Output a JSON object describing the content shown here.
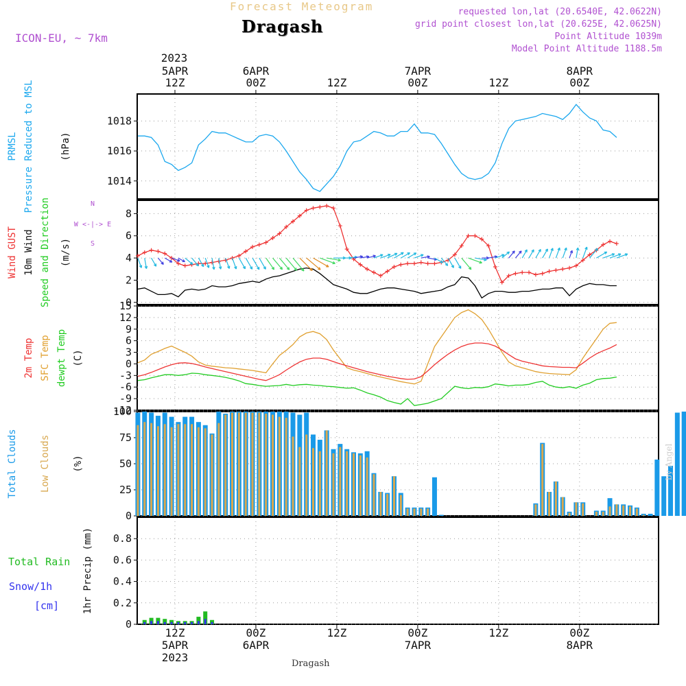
{
  "header": {
    "chart_title": "Forecast Meteogram",
    "location": "Dragash",
    "model": "ICON-EU, ~ 7km",
    "requested": "requested lon,lat (20.6540E, 42.0622N)",
    "grid_point": "grid point closest lon,lat (20.625E, 42.0625N)",
    "point_altitude": "Point Altitude 1039m",
    "model_altitude": "Model Point Altitude 1188.5m"
  },
  "time_axis": {
    "top_year": "2023",
    "ticks": [
      {
        "hour": 0,
        "top": [
          "5APR",
          "12Z"
        ],
        "bottom": [
          "12Z",
          "5APR",
          "2023"
        ]
      },
      {
        "hour": 12,
        "top": [
          "6APR",
          "00Z"
        ],
        "bottom": [
          "00Z",
          "6APR"
        ]
      },
      {
        "hour": 24,
        "top": [
          "12Z"
        ],
        "bottom": [
          "12Z"
        ]
      },
      {
        "hour": 36,
        "top": [
          "7APR",
          "00Z"
        ],
        "bottom": [
          "00Z",
          "7APR"
        ]
      },
      {
        "hour": 48,
        "top": [
          "12Z"
        ],
        "bottom": [
          "12Z"
        ]
      },
      {
        "hour": 60,
        "top": [
          "8APR",
          "00Z"
        ],
        "bottom": [
          "00Z",
          "8APR"
        ]
      }
    ]
  },
  "footer": {
    "location": "Dragash",
    "credit": "by Angel"
  },
  "colors": {
    "prmsl": "#1aa7ee",
    "gust": "#ee3333",
    "wind10m": "#000000",
    "t2m": "#ee3333",
    "sfc": "#e0a030",
    "dewpt": "#22cc22",
    "total_clouds": "#1a9ae8",
    "low_clouds": "#d8a850",
    "rain": "#22bb22",
    "snow": "#3333ee",
    "grid": "#999999"
  },
  "chart_data": [
    {
      "type": "line",
      "panel": "pressure",
      "ylabel_lines": [
        "PRMSL",
        "Pressure Reduced to MSL"
      ],
      "unit": "(hPa)",
      "yticks": [
        1014,
        1016,
        1018
      ],
      "ylim": [
        1012.8,
        1019.8
      ],
      "x_hours_start": -5.5,
      "x_hours_step": 1,
      "series": [
        {
          "name": "PRMSL",
          "values": [
            1017.0,
            1017.0,
            1016.9,
            1016.4,
            1015.3,
            1015.1,
            1014.7,
            1014.9,
            1015.2,
            1016.4,
            1016.8,
            1017.3,
            1017.2,
            1017.2,
            1017.0,
            1016.8,
            1016.6,
            1016.6,
            1017.0,
            1017.1,
            1017.0,
            1016.6,
            1016.0,
            1015.3,
            1014.6,
            1014.1,
            1013.5,
            1013.3,
            1013.8,
            1014.3,
            1015.0,
            1016.0,
            1016.6,
            1016.7,
            1017.0,
            1017.3,
            1017.2,
            1017.0,
            1017.0,
            1017.3,
            1017.3,
            1017.8,
            1017.2,
            1017.2,
            1017.1,
            1016.5,
            1015.8,
            1015.1,
            1014.5,
            1014.2,
            1014.1,
            1014.2,
            1014.5,
            1015.2,
            1016.5,
            1017.5,
            1018.0,
            1018.1,
            1018.2,
            1018.3,
            1018.5,
            1018.4,
            1018.3,
            1018.1,
            1018.5,
            1019.1,
            1018.6,
            1018.2,
            1018.0,
            1017.4,
            1017.3,
            1016.9
          ]
        }
      ]
    },
    {
      "type": "line",
      "panel": "wind",
      "ylabel_lines": [
        "Wind GUST",
        "10m Wind",
        "Speed and Direction"
      ],
      "unit": "(m/s)",
      "compass": [
        "N",
        "W <-|-> E",
        "S"
      ],
      "yticks": [
        0,
        2,
        4,
        6,
        8
      ],
      "ylim": [
        -0.2,
        9.2
      ],
      "x_hours_start": -5.5,
      "x_hours_step": 1,
      "series": [
        {
          "name": "Wind GUST",
          "values": [
            4.2,
            4.5,
            4.7,
            4.6,
            4.4,
            4.0,
            3.5,
            3.3,
            3.4,
            3.5,
            3.5,
            3.6,
            3.7,
            3.8,
            4.0,
            4.2,
            4.6,
            5.0,
            5.2,
            5.4,
            5.8,
            6.2,
            6.8,
            7.3,
            7.8,
            8.3,
            8.5,
            8.6,
            8.7,
            8.5,
            6.9,
            4.8,
            3.9,
            3.4,
            3.0,
            2.7,
            2.4,
            2.8,
            3.2,
            3.4,
            3.5,
            3.5,
            3.6,
            3.5,
            3.5,
            3.6,
            3.8,
            4.3,
            5.1,
            6.0,
            6.0,
            5.7,
            5.1,
            3.2,
            1.8,
            2.4,
            2.6,
            2.7,
            2.7,
            2.5,
            2.6,
            2.8,
            2.9,
            3.0,
            3.1,
            3.3,
            3.8,
            4.3,
            4.7,
            5.2,
            5.5,
            5.3
          ]
        },
        {
          "name": "10m Wind",
          "values": [
            1.2,
            1.3,
            1.0,
            0.7,
            0.7,
            0.8,
            0.5,
            1.1,
            1.2,
            1.1,
            1.2,
            1.5,
            1.4,
            1.4,
            1.5,
            1.7,
            1.8,
            1.9,
            1.8,
            2.1,
            2.3,
            2.4,
            2.6,
            2.8,
            3.0,
            3.1,
            3.0,
            2.6,
            2.1,
            1.6,
            1.4,
            1.2,
            0.9,
            0.8,
            0.8,
            1.0,
            1.2,
            1.3,
            1.3,
            1.2,
            1.1,
            1.0,
            0.8,
            0.9,
            1.0,
            1.1,
            1.4,
            1.6,
            2.3,
            2.2,
            1.5,
            0.4,
            0.8,
            1.0,
            1.0,
            0.9,
            0.9,
            1.0,
            1.0,
            1.1,
            1.2,
            1.2,
            1.3,
            1.3,
            0.6,
            1.2,
            1.5,
            1.7,
            1.6,
            1.6,
            1.5,
            1.5
          ]
        },
        {
          "name": "Direction (deg from)",
          "values": [
            340,
            350,
            330,
            320,
            300,
            290,
            300,
            310,
            320,
            330,
            340,
            350,
            350,
            340,
            340,
            330,
            330,
            330,
            330,
            325,
            320,
            320,
            320,
            320,
            315,
            310,
            300,
            290,
            280,
            270,
            270,
            265,
            260,
            260,
            255,
            250,
            250,
            245,
            240,
            240,
            240,
            250,
            260,
            280,
            300,
            320,
            330,
            330,
            320,
            290,
            280,
            270,
            260,
            250,
            230,
            220,
            220,
            210,
            210,
            210,
            210,
            200,
            200,
            200,
            200,
            190,
            200,
            220,
            240,
            250,
            250,
            250
          ]
        }
      ]
    },
    {
      "type": "line",
      "panel": "temperature",
      "ylabel_lines": [
        "2m Temp",
        "SFC Temp",
        "dewpt Temp"
      ],
      "unit": "(C)",
      "yticks": [
        -12,
        -9,
        -6,
        -3,
        0,
        3,
        6,
        9,
        12,
        15
      ],
      "ylim": [
        -12,
        15
      ],
      "x_hours_start": -5.5,
      "x_hours_step": 1,
      "series": [
        {
          "name": "2m Temp",
          "values": [
            -3.2,
            -2.8,
            -2.2,
            -1.5,
            -0.8,
            -0.2,
            0.2,
            0.3,
            0.1,
            -0.3,
            -0.8,
            -1.2,
            -1.6,
            -2.0,
            -2.4,
            -2.8,
            -3.2,
            -3.6,
            -4.0,
            -4.3,
            -3.6,
            -2.8,
            -1.6,
            -0.5,
            0.5,
            1.2,
            1.5,
            1.5,
            1.2,
            0.6,
            0.0,
            -0.5,
            -1.0,
            -1.5,
            -2.0,
            -2.4,
            -2.8,
            -3.2,
            -3.5,
            -3.8,
            -4.0,
            -3.9,
            -3.3,
            -1.8,
            -0.2,
            1.2,
            2.5,
            3.6,
            4.5,
            5.1,
            5.4,
            5.4,
            5.2,
            4.6,
            3.6,
            2.4,
            1.3,
            0.7,
            0.3,
            -0.1,
            -0.5,
            -0.7,
            -0.8,
            -0.9,
            -0.9,
            -1.0,
            0.2,
            1.5,
            2.6,
            3.4,
            4.1,
            5.0
          ]
        },
        {
          "name": "SFC Temp",
          "values": [
            0.3,
            1.0,
            2.5,
            3.2,
            4.0,
            4.6,
            3.8,
            3.0,
            2.0,
            0.5,
            -0.3,
            -0.6,
            -0.8,
            -1.0,
            -1.1,
            -1.3,
            -1.5,
            -1.7,
            -2.0,
            -2.3,
            0.0,
            2.2,
            3.5,
            5.0,
            7.0,
            8.0,
            8.4,
            7.8,
            6.3,
            3.6,
            1.3,
            -1.0,
            -1.6,
            -2.0,
            -2.5,
            -3.0,
            -3.4,
            -3.8,
            -4.2,
            -4.6,
            -4.9,
            -5.2,
            -4.5,
            0.0,
            4.5,
            7.0,
            9.5,
            12.0,
            13.3,
            14.0,
            13.0,
            11.5,
            9.0,
            6.0,
            3.0,
            0.5,
            -0.5,
            -1.0,
            -1.5,
            -2.0,
            -2.3,
            -2.5,
            -2.6,
            -2.7,
            -2.8,
            -1.5,
            1.5,
            4.0,
            6.5,
            9.0,
            10.5,
            10.7
          ]
        },
        {
          "name": "dewpt Temp",
          "values": [
            -4.3,
            -4.1,
            -3.6,
            -3.2,
            -2.8,
            -2.8,
            -3.0,
            -2.8,
            -2.4,
            -2.5,
            -2.8,
            -3.0,
            -3.2,
            -3.5,
            -3.9,
            -4.4,
            -5.1,
            -5.3,
            -5.6,
            -5.8,
            -5.7,
            -5.6,
            -5.3,
            -5.6,
            -5.4,
            -5.3,
            -5.5,
            -5.6,
            -5.8,
            -5.9,
            -6.1,
            -6.3,
            -6.2,
            -6.8,
            -7.5,
            -8.0,
            -8.6,
            -9.5,
            -10.0,
            -10.4,
            -9.0,
            -10.8,
            -10.5,
            -10.2,
            -9.6,
            -9.0,
            -7.4,
            -5.8,
            -6.2,
            -6.4,
            -6.1,
            -6.2,
            -5.9,
            -5.2,
            -5.4,
            -5.7,
            -5.5,
            -5.5,
            -5.3,
            -4.8,
            -4.5,
            -5.5,
            -6.0,
            -6.2,
            -5.9,
            -6.3,
            -5.5,
            -5.0,
            -4.1,
            -3.8,
            -3.7,
            -3.4
          ]
        }
      ]
    },
    {
      "type": "bar",
      "panel": "clouds",
      "ylabel_lines": [
        "Total Clouds",
        "Low Clouds"
      ],
      "unit": "(%)",
      "yticks": [
        0,
        25,
        50,
        75,
        100
      ],
      "ylim": [
        0,
        100
      ],
      "x_hours_start": -5.5,
      "x_hours_step": 1,
      "series": [
        {
          "name": "Total Clouds",
          "values": [
            99,
            100,
            99,
            96,
            99,
            95,
            90,
            95,
            95,
            90,
            87,
            79,
            100,
            98,
            100,
            100,
            100,
            100,
            100,
            100,
            100,
            100,
            100,
            99,
            97,
            99,
            78,
            73,
            82,
            64,
            69,
            64,
            61,
            60,
            62,
            41,
            23,
            22,
            38,
            22,
            8,
            8,
            8,
            8,
            37,
            1,
            0,
            0,
            0,
            0,
            0,
            0,
            0,
            0,
            0,
            0,
            0,
            0,
            0,
            12,
            70,
            23,
            33,
            18,
            4,
            13,
            13,
            0,
            5,
            5,
            17,
            11,
            11,
            10,
            8,
            2,
            2,
            54,
            38,
            48,
            99,
            100,
            100
          ]
        },
        {
          "name": "Low Clouds",
          "values": [
            87,
            90,
            89,
            86,
            88,
            85,
            88,
            88,
            88,
            85,
            84,
            78,
            89,
            97,
            99,
            99,
            99,
            99,
            99,
            98,
            97,
            95,
            94,
            76,
            66,
            78,
            65,
            62,
            82,
            60,
            66,
            62,
            60,
            58,
            56,
            40,
            23,
            21,
            38,
            20,
            7,
            7,
            7,
            7,
            0,
            0,
            0,
            0,
            0,
            0,
            0,
            0,
            0,
            0,
            0,
            0,
            0,
            0,
            0,
            11,
            69,
            23,
            33,
            18,
            3,
            13,
            12,
            0,
            4,
            4,
            9,
            11,
            10,
            9,
            7,
            1,
            0,
            0,
            0,
            0,
            0,
            0,
            72
          ]
        }
      ]
    },
    {
      "type": "bar",
      "panel": "precip",
      "ylabel_lines": [
        "Total  Rain",
        "Snow/1h",
        "[cm]"
      ],
      "unit": "1hr Precip (mm)",
      "yticks": [
        0,
        0.2,
        0.4,
        0.6,
        0.8
      ],
      "ylim": [
        0,
        1.0
      ],
      "x_hours_start": -4.5,
      "x_hours_step": 1,
      "series": [
        {
          "name": "Total Rain",
          "values": [
            0.04,
            0.06,
            0.06,
            0.05,
            0.04,
            0.03,
            0.03,
            0.03,
            0.07,
            0.12,
            0.04
          ]
        },
        {
          "name": "Snow/1h",
          "values": [
            0.02,
            0.03,
            0.03,
            0.02,
            0.02,
            0.02,
            0.02,
            0.02,
            0.03,
            0.05,
            0.02
          ]
        }
      ]
    }
  ]
}
